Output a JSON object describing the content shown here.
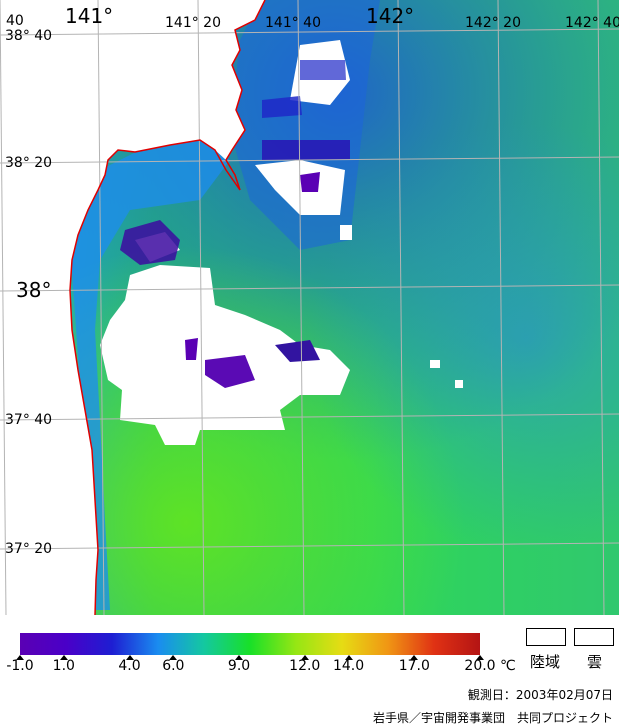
{
  "map": {
    "longitude_labels": [
      {
        "text": "40",
        "major": false
      },
      {
        "text": "141°",
        "major": true
      },
      {
        "text": "141° 20",
        "major": false
      },
      {
        "text": "141° 40",
        "major": false
      },
      {
        "text": "142°",
        "major": true
      },
      {
        "text": "142° 20",
        "major": false
      },
      {
        "text": "142° 40",
        "major": false
      }
    ],
    "latitude_labels": [
      {
        "text": "38° 40",
        "major": false
      },
      {
        "text": "38° 20",
        "major": false
      },
      {
        "text": "38°",
        "major": true
      },
      {
        "text": "37° 40",
        "major": false
      },
      {
        "text": "37° 20",
        "major": false
      }
    ],
    "colors": {
      "grid": "#b4b4b4",
      "coastline": "#e00000",
      "land": "#ffffff",
      "cloud": "#ffffff"
    }
  },
  "colorbar": {
    "ticks": [
      "-1.0",
      "1.0",
      "4.0",
      "6.0",
      "9.0",
      "12.0",
      "14.0",
      "17.0",
      "20.0"
    ],
    "tick_values": [
      -1.0,
      1.0,
      4.0,
      6.0,
      9.0,
      12.0,
      14.0,
      17.0,
      20.0
    ],
    "range": [
      -1.0,
      20.0
    ],
    "unit": "℃",
    "colors": [
      "#5a00b4",
      "#4a00c8",
      "#1e1ed2",
      "#1a8cf0",
      "#14c8a0",
      "#18e028",
      "#96e614",
      "#e6dc14",
      "#f09614",
      "#e03214",
      "#b41414"
    ]
  },
  "legend": {
    "land_label": "陸域",
    "cloud_label": "雲"
  },
  "observation_date": "観測日：2003年02月07日",
  "credit": "岩手県／宇宙開発事業団　共同プロジェクト"
}
